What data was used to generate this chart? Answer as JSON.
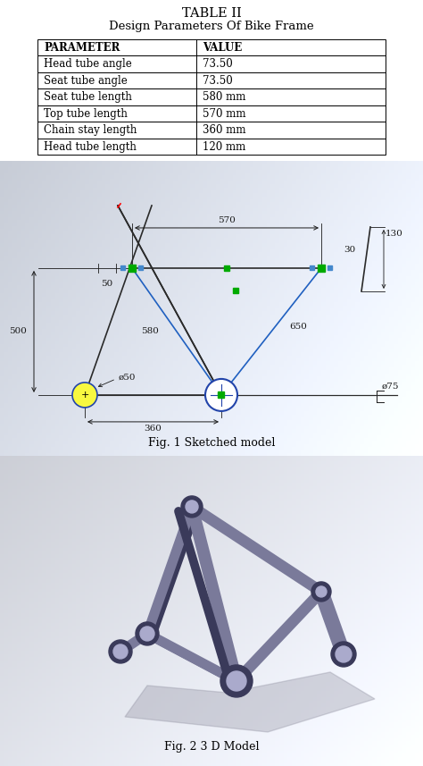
{
  "title": "TABLE II",
  "subtitle": "Design Parameters Of Bike Frame",
  "table_headers": [
    "PARAMETER",
    "VALUE"
  ],
  "table_rows": [
    [
      "Head tube angle",
      "73.50"
    ],
    [
      "Seat tube angle",
      "73.50"
    ],
    [
      "Seat tube length",
      "580 mm"
    ],
    [
      "Top tube length",
      "570 mm"
    ],
    [
      "Chain stay length",
      "360 mm"
    ],
    [
      "Head tube length",
      "120 mm"
    ]
  ],
  "fig1_caption": "Fig. 1 Sketched model",
  "fig2_caption": "Fig. 2 3 D Model",
  "bg_color": "#ffffff",
  "sketch_bg_start": "#c8d8e8",
  "sketch_bg_end": "#e8eef4",
  "model_bg_start": "#c8d4e0",
  "model_bg_end": "#eaeef2",
  "ann_color": "#1a1a1a",
  "sk_line": "#2a2a2a",
  "bl_line": "#2060c0",
  "gn_sq": "#00aa00",
  "tube_color": "#7a7a9a",
  "tube_dark": "#3a3a5a",
  "tube_light": "#aaaacc",
  "ann_fs": 7.5
}
